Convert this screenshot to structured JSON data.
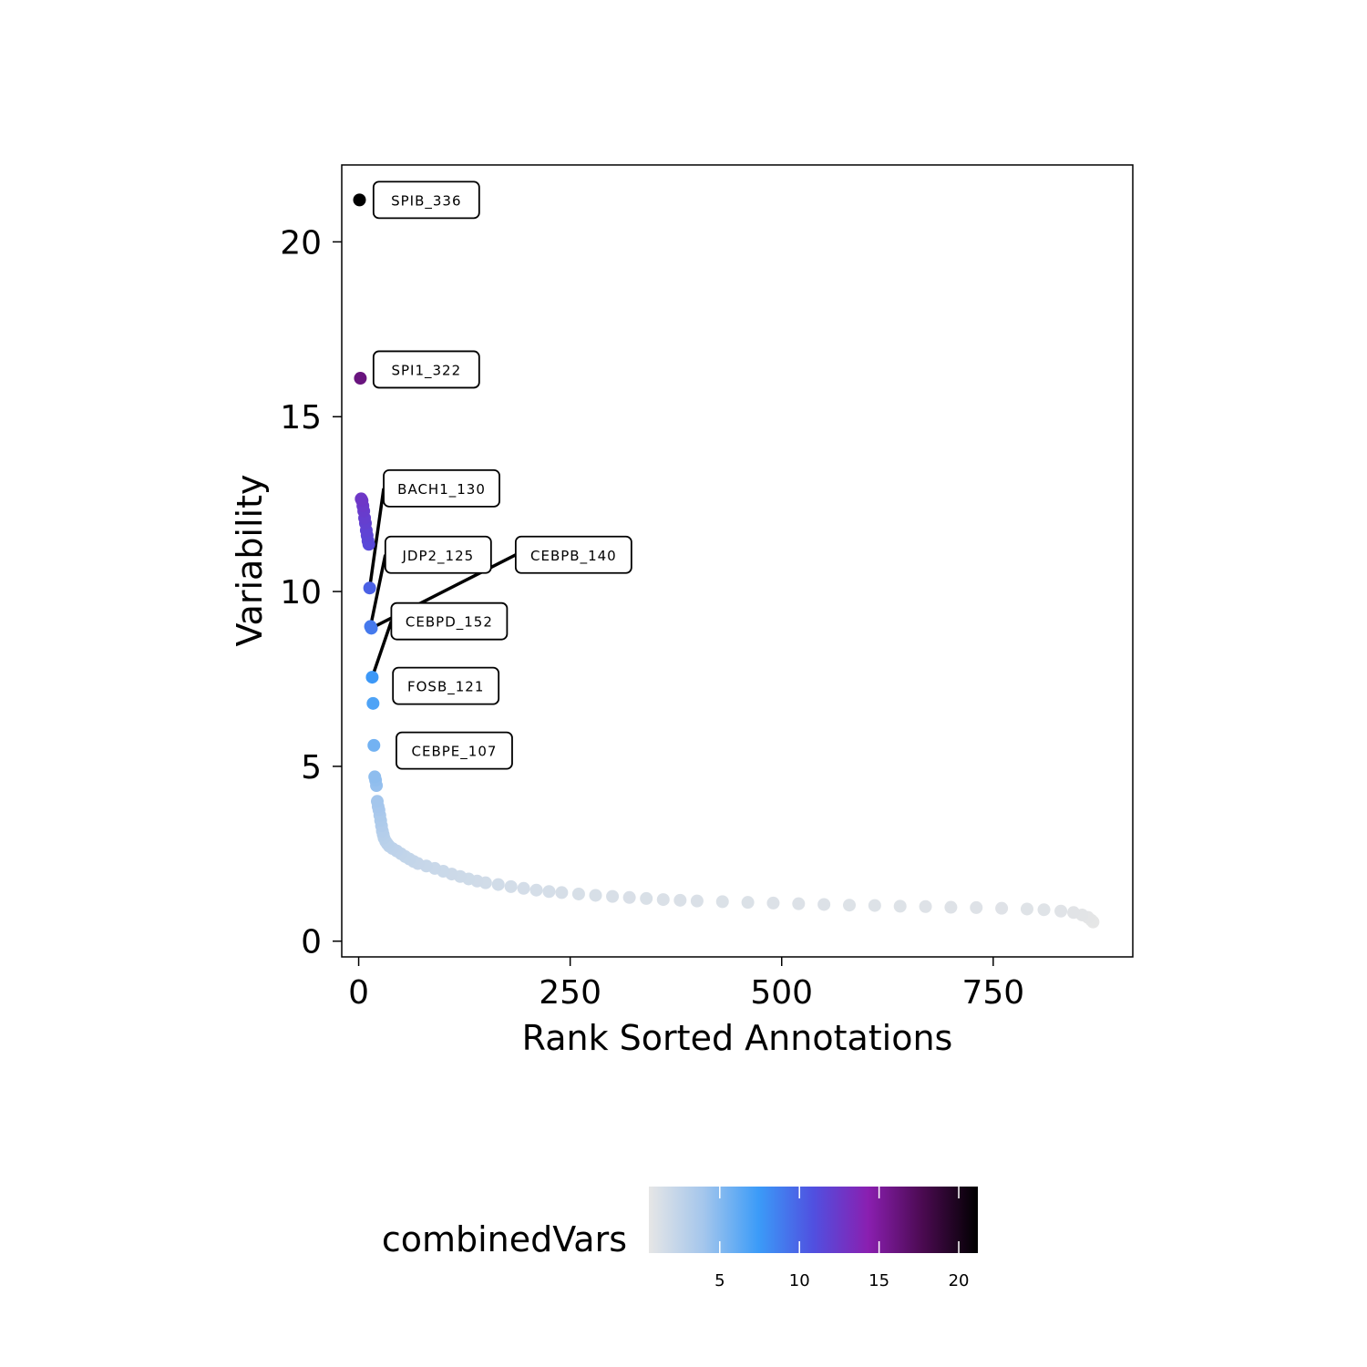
{
  "chart_data": {
    "type": "scatter",
    "xlabel": "Rank Sorted Annotations",
    "ylabel": "Variability",
    "xlim": [
      -20,
      915
    ],
    "ylim": [
      -0.45,
      22.2
    ],
    "xticks": [
      0,
      250,
      500,
      750
    ],
    "yticks": [
      0,
      5,
      10,
      15,
      20
    ],
    "grid": false,
    "color_scale": {
      "title": "combinedVars",
      "min": 0.55,
      "max": 21.2,
      "ticks": [
        5,
        10,
        15,
        20
      ],
      "stops": [
        "#e6e6e6",
        "#a4c6ec",
        "#3b9bf8",
        "#5050e0",
        "#8a1fb0",
        "#4a0a50",
        "#000000"
      ]
    },
    "points": [
      {
        "x": 1,
        "y": 21.2
      },
      {
        "x": 2,
        "y": 16.1
      },
      {
        "x": 3,
        "y": 12.65
      },
      {
        "x": 4,
        "y": 12.6
      },
      {
        "x": 5,
        "y": 12.45
      },
      {
        "x": 6,
        "y": 12.3
      },
      {
        "x": 7,
        "y": 12.1
      },
      {
        "x": 8,
        "y": 11.95
      },
      {
        "x": 9,
        "y": 11.75
      },
      {
        "x": 10,
        "y": 11.6
      },
      {
        "x": 11,
        "y": 11.45
      },
      {
        "x": 12,
        "y": 11.35
      },
      {
        "x": 13,
        "y": 10.1
      },
      {
        "x": 14,
        "y": 9.0
      },
      {
        "x": 15,
        "y": 8.95
      },
      {
        "x": 16,
        "y": 7.55
      },
      {
        "x": 17,
        "y": 6.8
      },
      {
        "x": 18,
        "y": 5.6
      },
      {
        "x": 19,
        "y": 4.7
      },
      {
        "x": 20,
        "y": 4.6
      },
      {
        "x": 21,
        "y": 4.45
      },
      {
        "x": 22,
        "y": 4.0
      },
      {
        "x": 23,
        "y": 3.85
      },
      {
        "x": 24,
        "y": 3.75
      },
      {
        "x": 25,
        "y": 3.6
      },
      {
        "x": 26,
        "y": 3.45
      },
      {
        "x": 27,
        "y": 3.3
      },
      {
        "x": 28,
        "y": 3.15
      },
      {
        "x": 29,
        "y": 3.05
      },
      {
        "x": 30,
        "y": 2.95
      },
      {
        "x": 32,
        "y": 2.85
      },
      {
        "x": 34,
        "y": 2.78
      },
      {
        "x": 36,
        "y": 2.72
      },
      {
        "x": 40,
        "y": 2.65
      },
      {
        "x": 45,
        "y": 2.58
      },
      {
        "x": 50,
        "y": 2.5
      },
      {
        "x": 55,
        "y": 2.42
      },
      {
        "x": 60,
        "y": 2.35
      },
      {
        "x": 65,
        "y": 2.28
      },
      {
        "x": 70,
        "y": 2.22
      },
      {
        "x": 80,
        "y": 2.15
      },
      {
        "x": 90,
        "y": 2.08
      },
      {
        "x": 100,
        "y": 2.0
      },
      {
        "x": 110,
        "y": 1.92
      },
      {
        "x": 120,
        "y": 1.85
      },
      {
        "x": 130,
        "y": 1.78
      },
      {
        "x": 140,
        "y": 1.72
      },
      {
        "x": 150,
        "y": 1.67
      },
      {
        "x": 165,
        "y": 1.62
      },
      {
        "x": 180,
        "y": 1.56
      },
      {
        "x": 195,
        "y": 1.51
      },
      {
        "x": 210,
        "y": 1.46
      },
      {
        "x": 225,
        "y": 1.42
      },
      {
        "x": 240,
        "y": 1.39
      },
      {
        "x": 260,
        "y": 1.35
      },
      {
        "x": 280,
        "y": 1.31
      },
      {
        "x": 300,
        "y": 1.28
      },
      {
        "x": 320,
        "y": 1.25
      },
      {
        "x": 340,
        "y": 1.22
      },
      {
        "x": 360,
        "y": 1.19
      },
      {
        "x": 380,
        "y": 1.17
      },
      {
        "x": 400,
        "y": 1.15
      },
      {
        "x": 430,
        "y": 1.13
      },
      {
        "x": 460,
        "y": 1.11
      },
      {
        "x": 490,
        "y": 1.09
      },
      {
        "x": 520,
        "y": 1.07
      },
      {
        "x": 550,
        "y": 1.05
      },
      {
        "x": 580,
        "y": 1.03
      },
      {
        "x": 610,
        "y": 1.02
      },
      {
        "x": 640,
        "y": 1.0
      },
      {
        "x": 670,
        "y": 0.99
      },
      {
        "x": 700,
        "y": 0.97
      },
      {
        "x": 730,
        "y": 0.96
      },
      {
        "x": 760,
        "y": 0.94
      },
      {
        "x": 790,
        "y": 0.92
      },
      {
        "x": 810,
        "y": 0.9
      },
      {
        "x": 830,
        "y": 0.86
      },
      {
        "x": 845,
        "y": 0.82
      },
      {
        "x": 855,
        "y": 0.75
      },
      {
        "x": 862,
        "y": 0.68
      },
      {
        "x": 866,
        "y": 0.6
      },
      {
        "x": 868,
        "y": 0.55
      }
    ],
    "annotations": [
      {
        "label": "SPIB_336",
        "x": 1,
        "y": 21.2,
        "label_x": 80,
        "label_y": 21.2,
        "leader": false
      },
      {
        "label": "SPI1_322",
        "x": 2,
        "y": 16.1,
        "label_x": 80,
        "label_y": 16.35,
        "leader": false
      },
      {
        "label": "BACH1_130",
        "x": 13,
        "y": 10.1,
        "label_x": 98,
        "label_y": 12.95,
        "leader": true
      },
      {
        "label": "JDP2_125",
        "x": 14,
        "y": 9.0,
        "label_x": 94,
        "label_y": 11.05,
        "leader": true
      },
      {
        "label": "CEBPB_140",
        "x": 15,
        "y": 8.95,
        "label_x": 254,
        "label_y": 11.05,
        "leader": true
      },
      {
        "label": "CEBPD_152",
        "x": 16,
        "y": 7.55,
        "label_x": 107,
        "label_y": 9.15,
        "leader": true
      },
      {
        "label": "FOSB_121",
        "x": 17,
        "y": 6.8,
        "label_x": 103,
        "label_y": 7.3,
        "leader": false
      },
      {
        "label": "CEBPE_107",
        "x": 18,
        "y": 5.6,
        "label_x": 113,
        "label_y": 5.45,
        "leader": false
      }
    ]
  }
}
